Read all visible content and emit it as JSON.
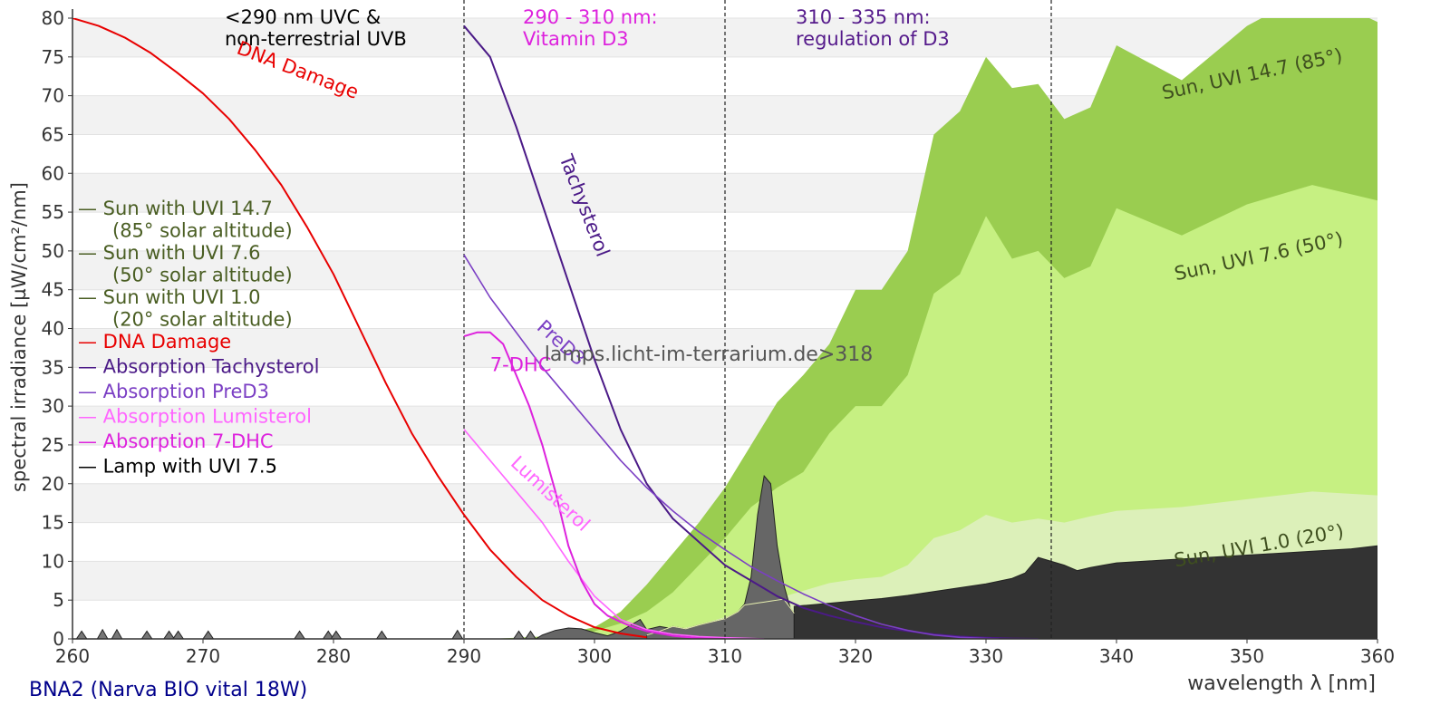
{
  "chart_data": {
    "type": "area",
    "xlabel": "wavelength λ [nm]",
    "ylabel": "spectral irradiance [µW/cm²/nm]",
    "xlim": [
      260,
      360
    ],
    "ylim": [
      0,
      80
    ],
    "x_ticks": [
      260,
      270,
      280,
      290,
      300,
      310,
      320,
      330,
      340,
      350,
      360
    ],
    "y_ticks": [
      0,
      5,
      10,
      15,
      20,
      25,
      30,
      35,
      40,
      45,
      50,
      55,
      60,
      65,
      70,
      75,
      80
    ],
    "grid": "alternating horizontal bands",
    "footer": "BNA2 (Narva BIO vital 18W)",
    "watermark": "lamps.licht-im-terrarium.de>318",
    "regions": [
      {
        "x": 290,
        "label_lines": [
          "<290 nm UVC &",
          "non-terrestrial UVB"
        ],
        "color": "#000000"
      },
      {
        "x": 310,
        "label_lines": [
          "290 - 310 nm:",
          "Vitamin D3"
        ],
        "color": "#dd22dd"
      },
      {
        "x": 335,
        "label_lines": [
          "310 - 335 nm:",
          "regulation of D3"
        ],
        "color": "#551a8b"
      }
    ],
    "legend": {
      "placement": "left",
      "entries": [
        {
          "lines": [
            "— Sun with UVI 14.7",
            "(85° solar altitude)"
          ],
          "color": "#4a5e23"
        },
        {
          "lines": [
            "— Sun with UVI 7.6",
            "(50° solar altitude)"
          ],
          "color": "#4a5e23"
        },
        {
          "lines": [
            "— Sun with UVI 1.0",
            "(20° solar altitude)"
          ],
          "color": "#4a5e23"
        },
        {
          "lines": [
            "— DNA Damage"
          ],
          "color": "#e80000"
        },
        {
          "lines": [
            "— Absorption Tachysterol"
          ],
          "color": "#4b1a87"
        },
        {
          "lines": [
            "— Absorption PreD3"
          ],
          "color": "#7b3fc4"
        },
        {
          "lines": [
            "— Absorption Lumisterol"
          ],
          "color": "#ff66ff"
        },
        {
          "lines": [
            "— Absorption 7-DHC"
          ],
          "color": "#dd22dd"
        },
        {
          "lines": [
            "— Lamp with UVI 7.5"
          ],
          "color": "#000000"
        }
      ]
    },
    "areas": [
      {
        "name": "Sun, UVI 14.7 (85°)",
        "color": "#9acd50",
        "x": [
          292,
          296,
          298,
          300,
          302,
          304,
          306,
          308,
          310,
          312,
          314,
          316,
          318,
          320,
          322,
          324,
          326,
          328,
          330,
          332,
          334,
          336,
          338,
          340,
          345,
          350,
          355,
          360
        ],
        "y": [
          0,
          0.3,
          0.8,
          1.5,
          3.5,
          7,
          11,
          15,
          19.5,
          25,
          30.5,
          34,
          38,
          45,
          45,
          50,
          65,
          68,
          75,
          71,
          71.5,
          67,
          68.5,
          76.5,
          72,
          79,
          83.5,
          79.5
        ],
        "label": "Sun, UVI 14.7 (85°)",
        "label_x": 350.5,
        "label_y": 72,
        "label_angle": -12,
        "label_color": "#3f4f1f"
      },
      {
        "name": "Sun, UVI 7.6 (50°)",
        "color": "#c6f082",
        "x": [
          294,
          296,
          298,
          300,
          302,
          304,
          306,
          308,
          310,
          312,
          314,
          316,
          318,
          320,
          322,
          324,
          326,
          328,
          330,
          332,
          334,
          336,
          338,
          340,
          345,
          350,
          355,
          360
        ],
        "y": [
          0,
          0.2,
          0.5,
          1,
          2,
          3.5,
          6,
          9.5,
          13,
          17,
          19.5,
          21.5,
          26.5,
          30,
          30,
          34,
          44.5,
          47,
          54.5,
          49,
          50,
          46.5,
          48,
          55.5,
          52,
          56,
          58.5,
          56.5
        ],
        "label": "Sun, UVI 7.6 (50°)",
        "label_x": 351,
        "label_y": 48.5,
        "label_angle": -12,
        "label_color": "#3f4f1f"
      },
      {
        "name": "Sun, UVI 1.0 (20°)",
        "color": "#dcf0b9",
        "x": [
          298,
          300,
          302,
          304,
          306,
          308,
          310,
          312,
          314,
          316,
          318,
          320,
          322,
          324,
          326,
          328,
          330,
          332,
          334,
          336,
          338,
          340,
          345,
          350,
          355,
          360
        ],
        "y": [
          0,
          0.2,
          0.4,
          0.7,
          1.1,
          1.8,
          2.8,
          4,
          5.2,
          6.2,
          7.2,
          7.7,
          8,
          9.5,
          13,
          14,
          16,
          15,
          15.5,
          15,
          15.8,
          16.5,
          17,
          18,
          19,
          18.5
        ],
        "label": "Sun, UVI 1.0 (20°)",
        "label_x": 351,
        "label_y": 11.2,
        "label_angle": -10,
        "label_color": "#3f4f1f"
      }
    ],
    "lamp": {
      "name": "Lamp with UVI 7.5",
      "color_main": "#333333",
      "color_peak": "#666666",
      "peak_x": [
        304,
        305,
        306,
        307,
        308,
        309,
        310,
        311,
        311.5,
        312,
        312.5,
        313,
        313.5,
        314,
        314.5,
        315,
        315.3
      ],
      "peak_y": [
        0.5,
        1,
        1.6,
        1.3,
        1.8,
        2.2,
        2.6,
        3.5,
        4.5,
        8,
        16,
        21,
        20,
        12,
        7,
        4,
        3.3
      ],
      "main_x": [
        315.3,
        316,
        318,
        320,
        322,
        324,
        326,
        328,
        330,
        332,
        333,
        334,
        335,
        336,
        337,
        338,
        339,
        340,
        342,
        344,
        346,
        348,
        350,
        352,
        354,
        356,
        358,
        360
      ],
      "main_y": [
        4.2,
        4.3,
        4.6,
        4.9,
        5.2,
        5.6,
        6.1,
        6.6,
        7.1,
        7.8,
        8.5,
        10.5,
        10,
        9.5,
        8.8,
        9.2,
        9.5,
        9.8,
        10,
        10.2,
        10.4,
        10.6,
        10.8,
        11,
        11.2,
        11.4,
        11.6,
        12
      ],
      "spikes_x": [
        260.7,
        262.3,
        263.4,
        265.7,
        267.4,
        268.1,
        270.4,
        277.4,
        279.6,
        280.2,
        283.7,
        289.5,
        294.2,
        295.1
      ],
      "spikes_h": [
        1,
        1.2,
        1.2,
        1,
        1,
        1,
        1,
        1,
        1,
        1,
        1,
        1.1,
        1,
        1
      ],
      "mid_x": [
        295.5,
        296,
        297,
        298,
        299,
        300,
        301,
        302,
        303,
        303.5,
        304,
        305,
        306,
        307,
        308
      ],
      "mid_y": [
        0,
        0.5,
        1.1,
        1.4,
        1.3,
        0.8,
        0.4,
        1,
        2,
        2.5,
        1.2,
        1.6,
        1.3,
        1,
        1.4
      ]
    },
    "curves": [
      {
        "name": "DNA Damage",
        "color": "#e80000",
        "width": 2,
        "x": [
          260,
          262,
          264,
          266,
          268,
          270,
          272,
          274,
          276,
          278,
          280,
          282,
          284,
          286,
          288,
          290,
          292,
          294,
          296,
          298,
          300,
          302,
          304
        ],
        "y": [
          80,
          79,
          77.5,
          75.5,
          73,
          70.3,
          67,
          63,
          58.5,
          53,
          47,
          40,
          33,
          26.5,
          21,
          16,
          11.5,
          8,
          5,
          3,
          1.5,
          0.7,
          0.2
        ],
        "label": "DNA Damage",
        "label_x": 272.5,
        "label_y": 75.5,
        "label_angle": 21,
        "label_color": "#e80000"
      },
      {
        "name": "Absorption Tachysterol",
        "color": "#4b1a87",
        "width": 2,
        "x": [
          290,
          292,
          294,
          296,
          298,
          300,
          302,
          304,
          306,
          308,
          310,
          312,
          314,
          316,
          318,
          320,
          322,
          324,
          326,
          328,
          330,
          332,
          334
        ],
        "y": [
          79,
          75,
          66,
          56,
          46,
          36,
          27,
          20,
          15.5,
          12.5,
          9.5,
          7.5,
          5.5,
          4,
          3,
          2.2,
          1.5,
          1,
          0.6,
          0.3,
          0.15,
          0.05,
          0
        ],
        "label": "Tachysterol",
        "label_x": 297.3,
        "label_y": 62,
        "label_angle": 69,
        "label_color": "#4b1a87"
      },
      {
        "name": "Absorption PreD3",
        "color": "#7b3fc4",
        "width": 1.6,
        "x": [
          290,
          292,
          294,
          296,
          298,
          300,
          302,
          304,
          306,
          308,
          310,
          312,
          314,
          316,
          318,
          320,
          322,
          324,
          326,
          328,
          330,
          331
        ],
        "y": [
          49.5,
          44,
          39.5,
          35,
          31,
          27,
          23,
          19.5,
          16.5,
          13.8,
          11.5,
          9.3,
          7.5,
          5.8,
          4.3,
          3,
          1.9,
          1.1,
          0.5,
          0.2,
          0.05,
          0
        ],
        "label": "PreD3",
        "label_x": 295.5,
        "label_y": 40,
        "label_angle": 42,
        "label_color": "#7b3fc4"
      },
      {
        "name": "Absorption Lumisterol",
        "color": "#ff66ff",
        "width": 1.6,
        "x": [
          290,
          292,
          294,
          296,
          298,
          300,
          302,
          304,
          306,
          308,
          310,
          312,
          313
        ],
        "y": [
          27,
          23,
          19,
          15,
          10,
          5.5,
          2.5,
          1.2,
          0.6,
          0.3,
          0.15,
          0.05,
          0
        ],
        "label": "Lumisterol",
        "label_x": 293.5,
        "label_y": 22.5,
        "label_angle": 43,
        "label_color": "#ff66ff"
      },
      {
        "name": "Absorption 7-DHC",
        "color": "#dd22dd",
        "width": 2,
        "x": [
          290,
          291,
          292,
          293,
          294,
          295,
          296,
          297,
          298,
          299,
          300,
          301,
          302,
          303,
          304,
          305,
          306,
          307,
          308,
          309,
          310
        ],
        "y": [
          39,
          39.5,
          39.5,
          38,
          34,
          30,
          25,
          19,
          12,
          7.5,
          4.5,
          3,
          2.2,
          1.5,
          1,
          0.7,
          0.4,
          0.25,
          0.1,
          0.05,
          0
        ],
        "label": "7-DHC",
        "label_x": 292,
        "label_y": 34.5,
        "label_angle": 0,
        "label_color": "#dd22dd"
      }
    ]
  }
}
